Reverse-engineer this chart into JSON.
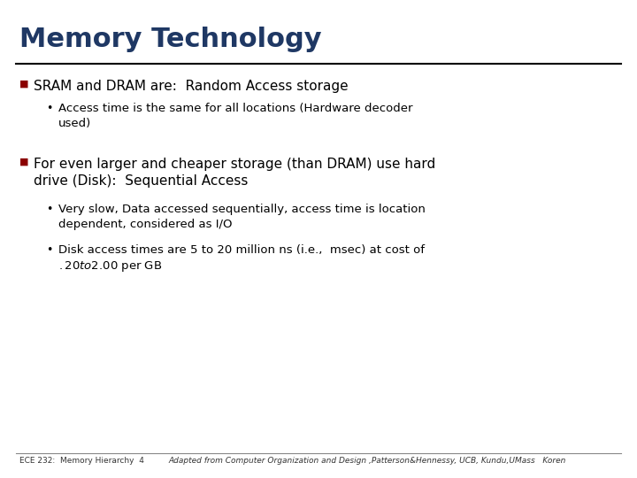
{
  "title": "Memory Technology",
  "title_color": "#1F3864",
  "title_fontsize": 22,
  "bg_color": "#FFFFFF",
  "rule_color": "#000000",
  "bullet_color": "#8B0000",
  "text_color": "#000000",
  "footer_left": "ECE 232:  Memory Hierarchy  4",
  "footer_right": "Adapted from Computer Organization and Design ,Patterson&Hennessy, UCB, Kundu,UMass   Koren",
  "bullet1": "SRAM and DRAM are:  Random Access storage",
  "sub1": "Access time is the same for all locations (Hardware decoder\nused)",
  "bullet2_line1": "For even larger and cheaper storage (than DRAM) use hard",
  "bullet2_line2": "drive (Disk):  Sequential Access",
  "sub2a_line1": "Very slow, Data accessed sequentially, access time is location",
  "sub2a_line2": "dependent, considered as I/O",
  "sub2b_line1": "Disk access times are 5 to 20 million ns (i.e.,  msec) at cost of",
  "sub2b_line2": "$.20 to $2.00 per GB"
}
